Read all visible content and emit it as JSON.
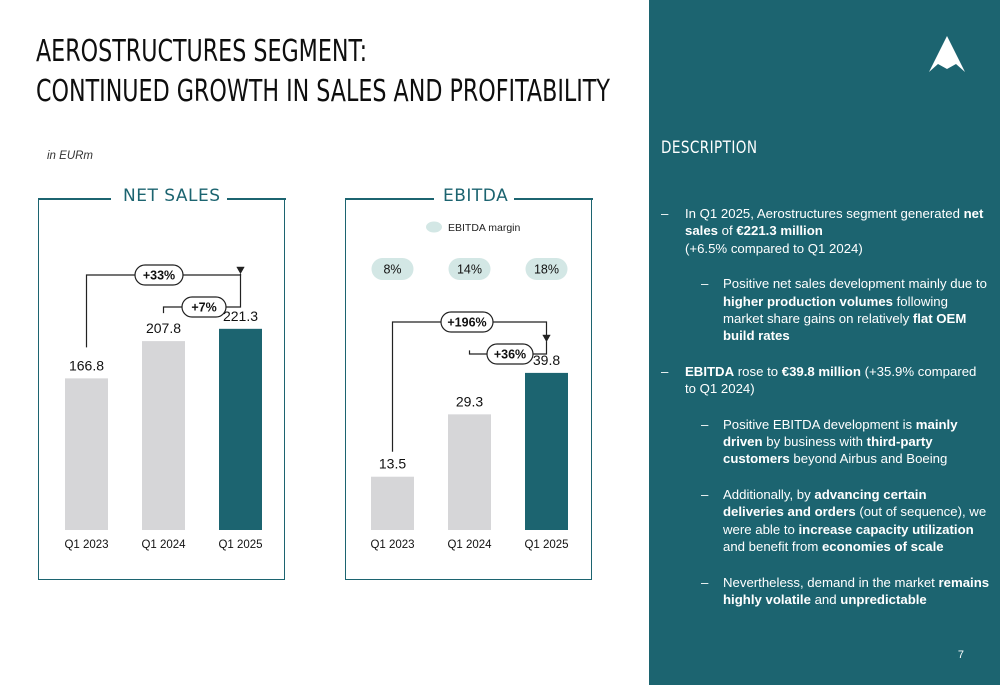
{
  "title": {
    "line1": "AEROSTRUCTURES SEGMENT:",
    "line2": "CONTINUED GROWTH IN SALES AND PROFITABILITY"
  },
  "unit_label": "in EURm",
  "colors": {
    "teal": "#1c6470",
    "grey_bar": "#d6d6d8",
    "margin_pill": "#d3e7e5"
  },
  "chart_data": [
    {
      "type": "bar",
      "title": "NET SALES",
      "categories": [
        "Q1 2023",
        "Q1 2024",
        "Q1 2025"
      ],
      "values": [
        166.8,
        207.8,
        221.3
      ],
      "value_labels": [
        "166.8",
        "207.8",
        "221.3"
      ],
      "highlight_index": 2,
      "ylim": [
        0,
        330
      ],
      "growth_annotations": [
        {
          "label": "+33%",
          "from": 0,
          "to": 2
        },
        {
          "label": "+7%",
          "from": 1,
          "to": 2
        }
      ]
    },
    {
      "type": "bar",
      "title": "EBITDA",
      "categories": [
        "Q1 2023",
        "Q1 2024",
        "Q1 2025"
      ],
      "values": [
        13.5,
        29.3,
        39.8
      ],
      "value_labels": [
        "13.5",
        "29.3",
        "39.8"
      ],
      "highlight_index": 2,
      "ylim": [
        0,
        76
      ],
      "legend": "EBITDA margin",
      "margins": [
        "8%",
        "14%",
        "18%"
      ],
      "growth_annotations": [
        {
          "label": "+196%",
          "from": 0,
          "to": 2
        },
        {
          "label": "+36%",
          "from": 1,
          "to": 2
        }
      ]
    }
  ],
  "sidebar": {
    "heading": "DESCRIPTION",
    "page_number": "7",
    "logo_icon": "arrow-logo-icon"
  }
}
